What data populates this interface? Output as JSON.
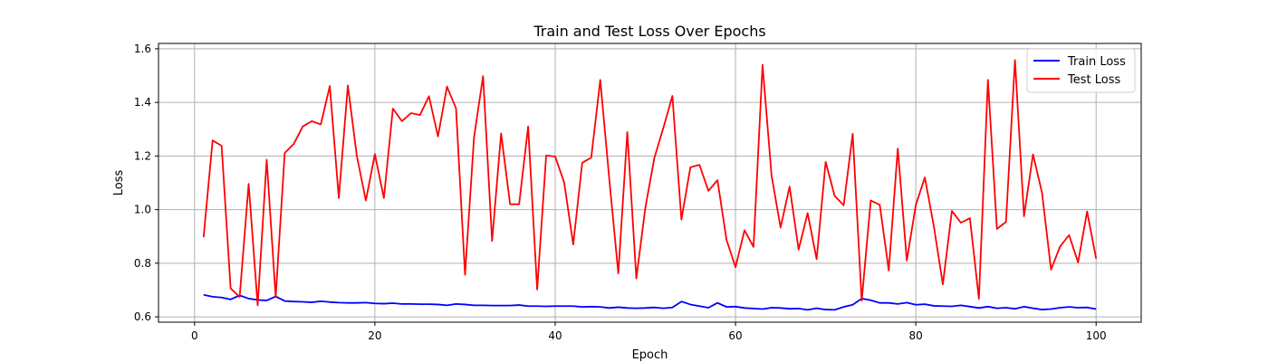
{
  "chart_data": {
    "type": "line",
    "title": "Train and Test Loss Over Epochs",
    "xlabel": "Epoch",
    "ylabel": "Loss",
    "xlim": [
      -4,
      105
    ],
    "ylim": [
      0.58,
      1.62
    ],
    "xticks": [
      0,
      20,
      40,
      60,
      80,
      100
    ],
    "yticks": [
      0.6,
      0.8,
      1.0,
      1.2,
      1.4,
      1.6
    ],
    "xtick_labels": [
      "0",
      "20",
      "40",
      "60",
      "80",
      "100"
    ],
    "ytick_labels": [
      "0.6",
      "0.8",
      "1.0",
      "1.2",
      "1.4",
      "1.6"
    ],
    "grid": true,
    "legend_position": "top-right",
    "x": [
      1,
      2,
      3,
      4,
      5,
      6,
      7,
      8,
      9,
      10,
      11,
      12,
      13,
      14,
      15,
      16,
      17,
      18,
      19,
      20,
      21,
      22,
      23,
      24,
      25,
      26,
      27,
      28,
      29,
      30,
      31,
      32,
      33,
      34,
      35,
      36,
      37,
      38,
      39,
      40,
      41,
      42,
      43,
      44,
      45,
      46,
      47,
      48,
      49,
      50,
      51,
      52,
      53,
      54,
      55,
      56,
      57,
      58,
      59,
      60,
      61,
      62,
      63,
      64,
      65,
      66,
      67,
      68,
      69,
      70,
      71,
      72,
      73,
      74,
      75,
      76,
      77,
      78,
      79,
      80,
      81,
      82,
      83,
      84,
      85,
      86,
      87,
      88,
      89,
      90,
      91,
      92,
      93,
      94,
      95,
      96,
      97,
      98,
      99,
      100
    ],
    "series": [
      {
        "name": "Train Loss",
        "color": "#0000ff",
        "values": [
          0.682,
          0.675,
          0.672,
          0.665,
          0.68,
          0.668,
          0.663,
          0.661,
          0.676,
          0.659,
          0.657,
          0.656,
          0.654,
          0.658,
          0.655,
          0.653,
          0.652,
          0.652,
          0.653,
          0.65,
          0.649,
          0.651,
          0.648,
          0.648,
          0.647,
          0.647,
          0.646,
          0.643,
          0.648,
          0.646,
          0.643,
          0.643,
          0.642,
          0.642,
          0.642,
          0.644,
          0.64,
          0.64,
          0.639,
          0.64,
          0.64,
          0.64,
          0.637,
          0.638,
          0.637,
          0.633,
          0.636,
          0.633,
          0.632,
          0.633,
          0.635,
          0.632,
          0.635,
          0.657,
          0.646,
          0.64,
          0.634,
          0.652,
          0.637,
          0.638,
          0.633,
          0.631,
          0.629,
          0.634,
          0.633,
          0.63,
          0.631,
          0.626,
          0.632,
          0.627,
          0.626,
          0.637,
          0.645,
          0.668,
          0.662,
          0.652,
          0.652,
          0.648,
          0.653,
          0.645,
          0.647,
          0.641,
          0.64,
          0.639,
          0.643,
          0.638,
          0.633,
          0.638,
          0.632,
          0.634,
          0.63,
          0.638,
          0.632,
          0.627,
          0.629,
          0.634,
          0.637,
          0.634,
          0.635,
          0.629
        ]
      },
      {
        "name": "Test Loss",
        "color": "#ff0000",
        "values": [
          0.897,
          1.258,
          1.238,
          0.706,
          0.674,
          1.096,
          0.643,
          1.186,
          0.674,
          1.211,
          1.245,
          1.31,
          1.33,
          1.318,
          1.461,
          1.043,
          1.463,
          1.2,
          1.034,
          1.207,
          1.043,
          1.377,
          1.33,
          1.36,
          1.353,
          1.423,
          1.273,
          1.459,
          1.378,
          0.757,
          1.27,
          1.498,
          0.883,
          1.284,
          1.02,
          1.02,
          1.31,
          0.702,
          1.202,
          1.198,
          1.101,
          0.87,
          1.175,
          1.194,
          1.484,
          1.114,
          0.762,
          1.289,
          0.743,
          1.007,
          1.193,
          1.305,
          1.424,
          0.963,
          1.158,
          1.167,
          1.07,
          1.11,
          0.888,
          0.785,
          0.923,
          0.861,
          1.54,
          1.127,
          0.933,
          1.086,
          0.851,
          0.987,
          0.815,
          1.178,
          1.051,
          1.016,
          1.283,
          0.66,
          1.034,
          1.018,
          0.773,
          1.228,
          0.81,
          1.017,
          1.12,
          0.938,
          0.721,
          0.995,
          0.951,
          0.968,
          0.667,
          1.484,
          0.928,
          0.954,
          1.558,
          0.975,
          1.206,
          1.063,
          0.776,
          0.862,
          0.905,
          0.803,
          0.993,
          0.817
        ]
      }
    ]
  }
}
